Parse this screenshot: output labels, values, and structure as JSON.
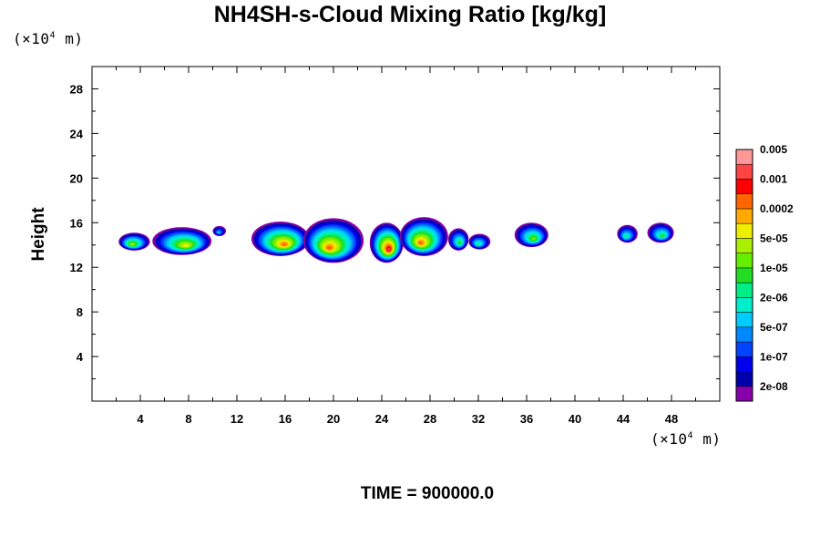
{
  "chart_data": {
    "type": "heatmap",
    "title": "NH4SH-s-Cloud Mixing Ratio [kg/kg]",
    "ylabel": "Height",
    "y_unit": "(×10⁴ m)",
    "x_unit": "(×10⁴ m)",
    "xlim": [
      0,
      52
    ],
    "ylim": [
      0,
      30
    ],
    "xticks": [
      4,
      8,
      12,
      16,
      20,
      24,
      28,
      32,
      36,
      40,
      44,
      48
    ],
    "yticks": [
      4,
      8,
      12,
      16,
      20,
      24,
      28
    ],
    "footer": "TIME = 900000.0",
    "colorbar": {
      "colors": [
        "#8800aa",
        "#0000aa",
        "#0000ee",
        "#0044ff",
        "#0088ff",
        "#00ccff",
        "#00eecc",
        "#00ee88",
        "#22dd22",
        "#66ee00",
        "#aaee00",
        "#eeee00",
        "#ffaa00",
        "#ff6600",
        "#ff0000",
        "#ff4444",
        "#ff9999"
      ],
      "labels": [
        "2e-08",
        "1e-07",
        "5e-07",
        "2e-06",
        "1e-05",
        "5e-05",
        "0.0002",
        "0.001",
        "0.005"
      ]
    },
    "blobs": [
      {
        "x": [
          2.2,
          4.8
        ],
        "y": [
          13.5,
          15.1
        ],
        "peak": 10
      },
      {
        "x": [
          5.0,
          9.9
        ],
        "y": [
          13.1,
          15.6
        ],
        "peak": 11
      },
      {
        "x": [
          10.0,
          11.1
        ],
        "y": [
          14.8,
          15.7
        ],
        "peak": 5
      },
      {
        "x": [
          13.2,
          18.0
        ],
        "y": [
          13.0,
          16.1
        ],
        "peak": 13
      },
      {
        "x": [
          17.5,
          22.5
        ],
        "y": [
          12.4,
          16.4
        ],
        "peak": 13
      },
      {
        "x": [
          23.0,
          25.8
        ],
        "y": [
          12.4,
          16.0
        ],
        "peak": 15
      },
      {
        "x": [
          25.5,
          29.5
        ],
        "y": [
          13.0,
          16.5
        ],
        "peak": 13
      },
      {
        "x": [
          29.5,
          31.2
        ],
        "y": [
          13.5,
          15.5
        ],
        "peak": 8
      },
      {
        "x": [
          31.2,
          33.0
        ],
        "y": [
          13.6,
          15.0
        ],
        "peak": 7
      },
      {
        "x": [
          35.0,
          37.8
        ],
        "y": [
          13.8,
          16.0
        ],
        "peak": 9
      },
      {
        "x": [
          43.5,
          45.2
        ],
        "y": [
          14.2,
          15.8
        ],
        "peak": 7
      },
      {
        "x": [
          46.0,
          48.2
        ],
        "y": [
          14.2,
          16.0
        ],
        "peak": 8
      }
    ]
  }
}
